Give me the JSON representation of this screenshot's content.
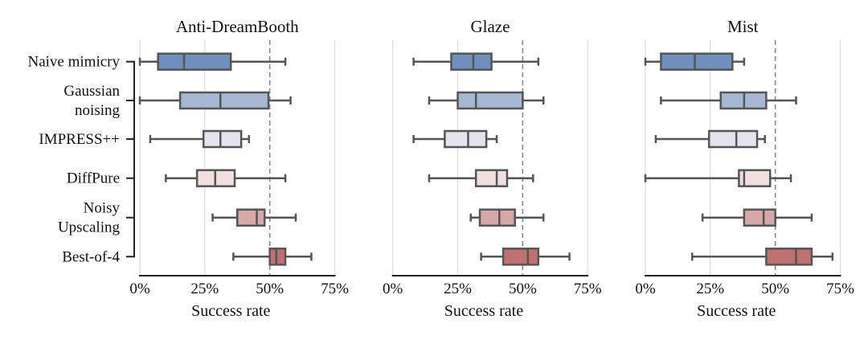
{
  "chart_data": [
    {
      "type": "box",
      "title": "Anti-DreamBooth",
      "xlabel": "Success rate",
      "xlim": [
        0,
        75
      ],
      "xticks": [
        "0%",
        "25%",
        "50%",
        "75%"
      ],
      "reference_line": 50,
      "grid": true,
      "categories": [
        "Naive mimicry",
        "Gaussian noising",
        "IMPRESS++",
        "DiffPure",
        "Noisy Upscaling",
        "Best-of-4"
      ],
      "boxes": [
        {
          "whislo": 0,
          "q1": 7,
          "med": 17,
          "q3": 35,
          "whishi": 56
        },
        {
          "whislo": 0,
          "q1": 15.5,
          "med": 31,
          "q3": 49.5,
          "whishi": 58
        },
        {
          "whislo": 4,
          "q1": 24.5,
          "med": 31,
          "q3": 39,
          "whishi": 42
        },
        {
          "whislo": 10,
          "q1": 22,
          "med": 29,
          "q3": 36.5,
          "whishi": 56
        },
        {
          "whislo": 28,
          "q1": 37.5,
          "med": 45,
          "q3": 48,
          "whishi": 60
        },
        {
          "whislo": 36,
          "q1": 50,
          "med": 52.5,
          "q3": 56,
          "whishi": 66
        }
      ]
    },
    {
      "type": "box",
      "title": "Glaze",
      "xlabel": "Success rate",
      "xlim": [
        0,
        75
      ],
      "xticks": [
        "0%",
        "25%",
        "50%",
        "75%"
      ],
      "reference_line": 50,
      "grid": true,
      "categories": [
        "Naive mimicry",
        "Gaussian noising",
        "IMPRESS++",
        "DiffPure",
        "Noisy Upscaling",
        "Best-of-4"
      ],
      "boxes": [
        {
          "whislo": 8,
          "q1": 22.5,
          "med": 31,
          "q3": 38,
          "whishi": 56
        },
        {
          "whislo": 14,
          "q1": 25,
          "med": 32,
          "q3": 50,
          "whishi": 58
        },
        {
          "whislo": 8,
          "q1": 20,
          "med": 29,
          "q3": 36,
          "whishi": 40
        },
        {
          "whislo": 14,
          "q1": 32,
          "med": 40,
          "q3": 44,
          "whishi": 54
        },
        {
          "whislo": 30,
          "q1": 33.5,
          "med": 41,
          "q3": 47,
          "whishi": 58
        },
        {
          "whislo": 34,
          "q1": 42.5,
          "med": 52,
          "q3": 56,
          "whishi": 68
        }
      ]
    },
    {
      "type": "box",
      "title": "Mist",
      "xlabel": "Success rate",
      "xlim": [
        0,
        75
      ],
      "xticks": [
        "0%",
        "25%",
        "50%",
        "75%"
      ],
      "reference_line": 50,
      "grid": true,
      "categories": [
        "Naive mimicry",
        "Gaussian noising",
        "IMPRESS++",
        "DiffPure",
        "Noisy Upscaling",
        "Best-of-4"
      ],
      "boxes": [
        {
          "whislo": 0,
          "q1": 6,
          "med": 19,
          "q3": 33.5,
          "whishi": 38
        },
        {
          "whislo": 6,
          "q1": 29,
          "med": 38,
          "q3": 46.5,
          "whishi": 58
        },
        {
          "whislo": 4,
          "q1": 24.5,
          "med": 35,
          "q3": 43,
          "whishi": 46
        },
        {
          "whislo": 0,
          "q1": 36,
          "med": 38,
          "q3": 48,
          "whishi": 56
        },
        {
          "whislo": 22,
          "q1": 38,
          "med": 45.5,
          "q3": 50,
          "whishi": 64
        },
        {
          "whislo": 18,
          "q1": 46.5,
          "med": 58,
          "q3": 64,
          "whishi": 72
        }
      ]
    }
  ],
  "row_labels": [
    [
      "Naive mimicry"
    ],
    [
      "Gaussian",
      "noising"
    ],
    [
      "IMPRESS++"
    ],
    [
      "DiffPure"
    ],
    [
      "Noisy",
      "Upscaling"
    ],
    [
      "Best-of-4"
    ]
  ],
  "colors": {
    "boxes": [
      "#6f8fbd",
      "#a6b7d2",
      "#e3e4ed",
      "#f1dfdf",
      "#d6a8a8",
      "#bf7171"
    ],
    "edge": "#555555",
    "grid": "#dddddd",
    "reference": "#888888"
  }
}
